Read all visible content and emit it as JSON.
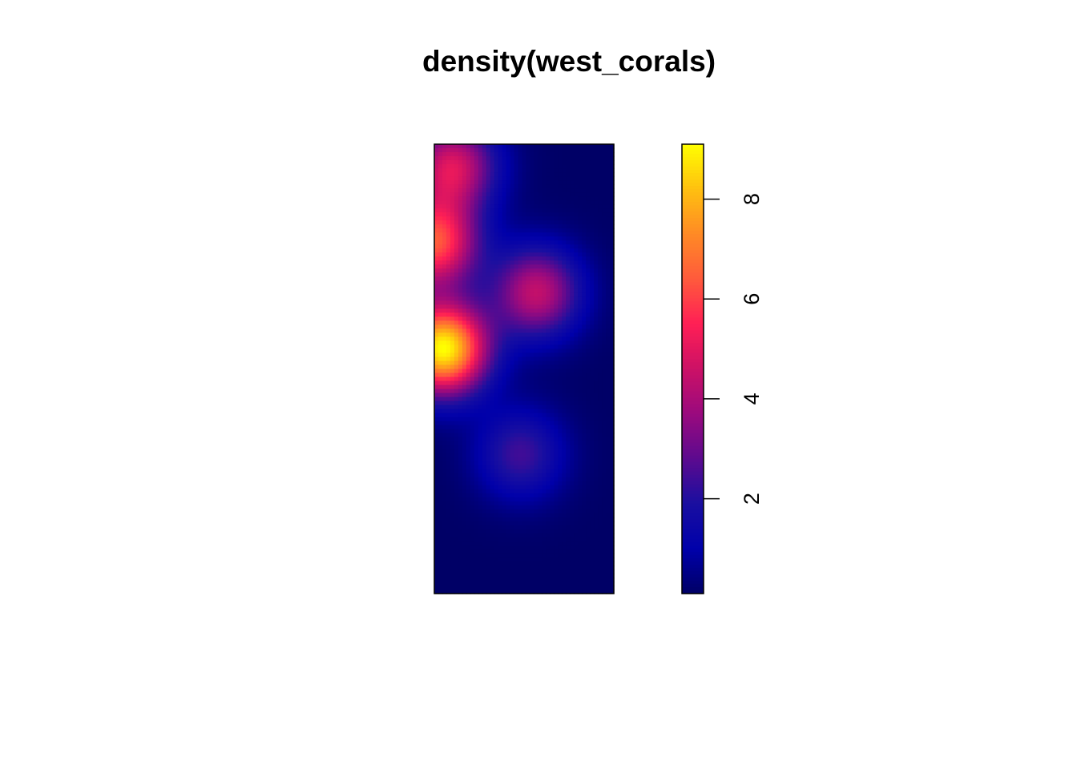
{
  "chart_data": {
    "type": "heatmap",
    "title": "density(west_corals)",
    "xlabel": "",
    "ylabel": "",
    "colorbar": {
      "min": 0.1,
      "max": 9.1,
      "ticks": [
        2,
        4,
        6,
        8
      ],
      "tick_labels": [
        "2",
        "4",
        "6",
        "8"
      ],
      "palette": [
        "#000066",
        "#0000aa",
        "#1a0fa0",
        "#5c0a8f",
        "#9a0a7e",
        "#cc1166",
        "#ff1f55",
        "#ff5a3c",
        "#ff8a25",
        "#ffc010",
        "#ffff00"
      ]
    },
    "density_peaks": [
      {
        "x": 0.05,
        "y": 0.545,
        "value": 9.1
      },
      {
        "x": 0.0,
        "y": 0.78,
        "value": 6.2
      },
      {
        "x": 0.1,
        "y": 0.95,
        "value": 4.8
      },
      {
        "x": 0.57,
        "y": 0.67,
        "value": 4.4
      },
      {
        "x": 0.48,
        "y": 0.31,
        "value": 2.4
      }
    ],
    "background_value": 0.1
  }
}
